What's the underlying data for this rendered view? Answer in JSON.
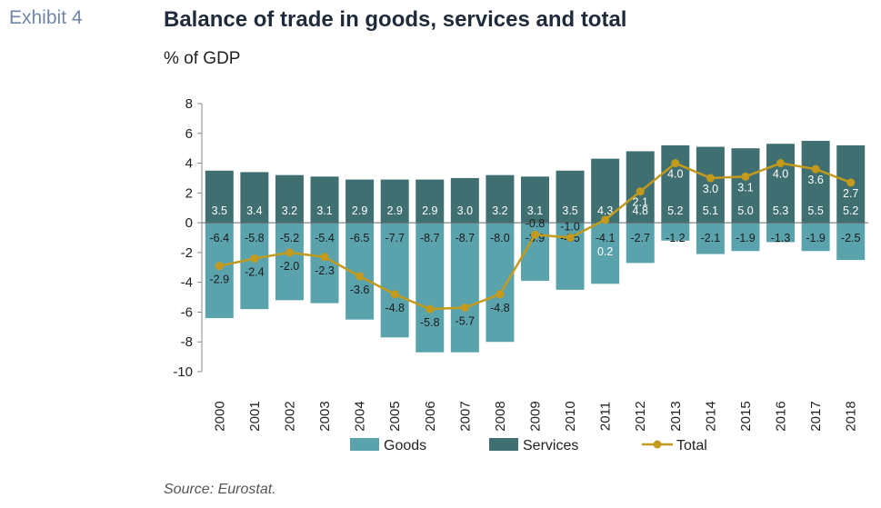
{
  "header": {
    "exhibit": "Exhibit 4",
    "title": "Balance of trade in goods, services and total",
    "subtitle": "% of GDP"
  },
  "footer": {
    "source": "Source: Eurostat."
  },
  "chart_data": {
    "type": "bar",
    "title": "Balance of trade in goods, services and total",
    "ylabel": "% of GDP",
    "ylim": [
      -10,
      8
    ],
    "yticks": [
      8,
      6,
      4,
      2,
      0,
      -2,
      -4,
      -6,
      -8,
      -10
    ],
    "legend_position": "bottom",
    "categories": [
      "2000",
      "2001",
      "2002",
      "2003",
      "2004",
      "2005",
      "2006",
      "2007",
      "2008",
      "2009",
      "2010",
      "2011",
      "2012",
      "2013",
      "2014",
      "2015",
      "2016",
      "2017",
      "2018"
    ],
    "series": [
      {
        "name": "Goods",
        "kind": "bar",
        "color": "#5aa3ad",
        "values": [
          -6.4,
          -5.8,
          -5.2,
          -5.4,
          -6.5,
          -7.7,
          -8.7,
          -8.7,
          -8.0,
          -3.9,
          -4.5,
          -4.1,
          -2.7,
          -1.2,
          -2.1,
          -1.9,
          -1.3,
          -1.9,
          -2.5
        ]
      },
      {
        "name": "Services",
        "kind": "bar",
        "color": "#3f6f70",
        "values": [
          3.5,
          3.4,
          3.2,
          3.1,
          2.9,
          2.9,
          2.9,
          3.0,
          3.2,
          3.1,
          3.5,
          4.3,
          4.8,
          5.2,
          5.1,
          5.0,
          5.3,
          5.5,
          5.2
        ]
      },
      {
        "name": "Total",
        "kind": "line",
        "color": "#c39a1c",
        "values": [
          -2.9,
          -2.4,
          -2.0,
          -2.3,
          -3.6,
          -4.8,
          -5.8,
          -5.7,
          -4.8,
          -0.8,
          -1.0,
          0.2,
          2.1,
          4.0,
          3.0,
          3.1,
          4.0,
          3.6,
          2.7
        ]
      }
    ]
  }
}
